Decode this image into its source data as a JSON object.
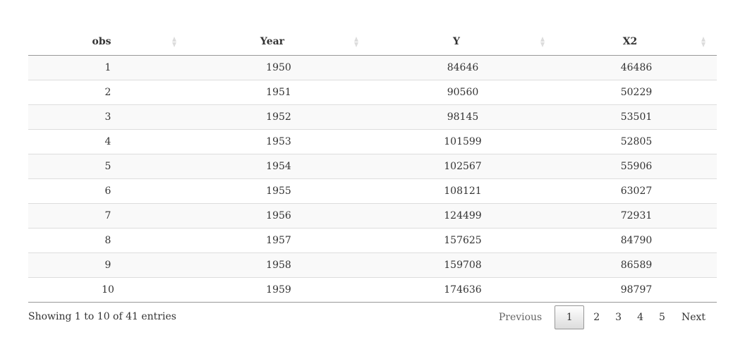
{
  "table": {
    "columns": [
      "obs",
      "Year",
      "Y",
      "X2"
    ],
    "rows": [
      [
        "1",
        "1950",
        "84646",
        "46486"
      ],
      [
        "2",
        "1951",
        "90560",
        "50229"
      ],
      [
        "3",
        "1952",
        "98145",
        "53501"
      ],
      [
        "4",
        "1953",
        "101599",
        "52805"
      ],
      [
        "5",
        "1954",
        "102567",
        "55906"
      ],
      [
        "6",
        "1955",
        "108121",
        "63027"
      ],
      [
        "7",
        "1956",
        "124499",
        "72931"
      ],
      [
        "8",
        "1957",
        "157625",
        "84790"
      ],
      [
        "9",
        "1958",
        "159708",
        "86589"
      ],
      [
        "10",
        "1959",
        "174636",
        "98797"
      ]
    ]
  },
  "info": "Showing 1 to 10 of 41 entries",
  "pagination": {
    "previous": "Previous",
    "pages": [
      "1",
      "2",
      "3",
      "4",
      "5"
    ],
    "current": "1",
    "next": "Next"
  },
  "icons": {
    "sort": "sort-both-icon"
  },
  "colors": {
    "stripe": "#f9f9f9",
    "row_border": "#dddddd",
    "header_border": "#999999",
    "text": "#333333"
  }
}
